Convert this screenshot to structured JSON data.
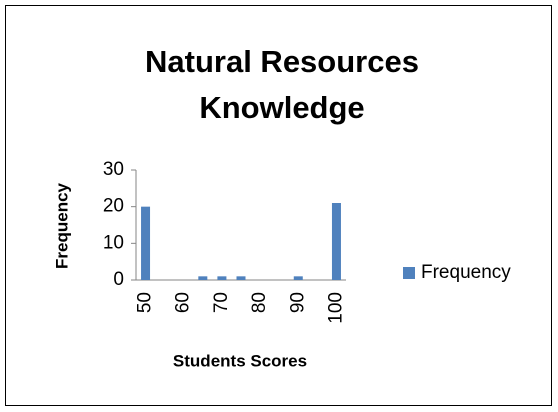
{
  "chart_data": {
    "type": "bar",
    "title": [
      "Natural Resources",
      "Knowledge"
    ],
    "x_label": "Students Scores",
    "y_label": "Frequency",
    "categories": [
      "50",
      null,
      "60",
      null,
      "70",
      null,
      "80",
      null,
      "90",
      null,
      "100"
    ],
    "series": [
      {
        "name": "Frequency",
        "color": "#4f81bd",
        "values": [
          20,
          0,
          0,
          1,
          1,
          1,
          0,
          0,
          1,
          0,
          21
        ]
      }
    ],
    "ylim": [
      0,
      30
    ],
    "yticks": [
      0,
      10,
      20,
      30
    ],
    "grid": false,
    "legend": "right"
  }
}
